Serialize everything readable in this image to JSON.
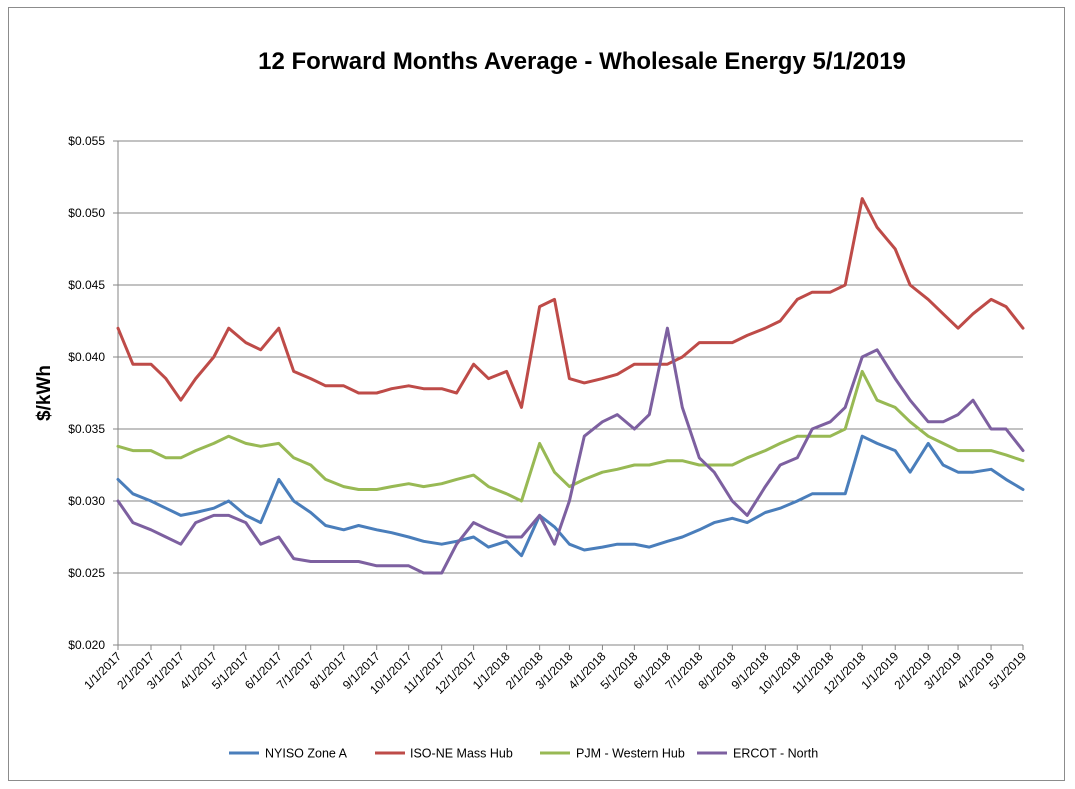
{
  "chart_data": {
    "type": "line",
    "title": "12 Forward Months Average - Wholesale Energy 5/1/2019",
    "ylabel": "$/kWh",
    "xlabel": "",
    "ylim": [
      0.02,
      0.055
    ],
    "xlim": [
      "1/1/2017",
      "5/1/2019"
    ],
    "yticks": [
      0.02,
      0.025,
      0.03,
      0.035,
      0.04,
      0.045,
      0.05,
      0.055
    ],
    "ytick_labels": [
      "$0.020",
      "$0.025",
      "$0.030",
      "$0.035",
      "$0.040",
      "$0.045",
      "$0.050",
      "$0.055"
    ],
    "xtick_labels": [
      "1/1/2017",
      "2/1/2017",
      "3/1/2017",
      "4/1/2017",
      "5/1/2017",
      "6/1/2017",
      "7/1/2017",
      "8/1/2017",
      "9/1/2017",
      "10/1/2017",
      "11/1/2017",
      "12/1/2017",
      "1/1/2018",
      "2/1/2018",
      "3/1/2018",
      "4/1/2018",
      "5/1/2018",
      "6/1/2018",
      "7/1/2018",
      "8/1/2018",
      "9/1/2018",
      "10/1/2018",
      "11/1/2018",
      "12/1/2018",
      "1/1/2019",
      "2/1/2019",
      "3/1/2019",
      "4/1/2019",
      "5/1/2019"
    ],
    "x": [
      "1/1/2017",
      "1/15/2017",
      "2/1/2017",
      "2/15/2017",
      "3/1/2017",
      "3/15/2017",
      "4/1/2017",
      "4/15/2017",
      "5/1/2017",
      "5/15/2017",
      "6/1/2017",
      "6/15/2017",
      "7/1/2017",
      "7/15/2017",
      "8/1/2017",
      "8/15/2017",
      "9/1/2017",
      "9/15/2017",
      "10/1/2017",
      "10/15/2017",
      "11/1/2017",
      "11/15/2017",
      "12/1/2017",
      "12/15/2017",
      "1/1/2018",
      "1/15/2018",
      "2/1/2018",
      "2/15/2018",
      "3/1/2018",
      "3/15/2018",
      "4/1/2018",
      "4/15/2018",
      "5/1/2018",
      "5/15/2018",
      "6/1/2018",
      "6/15/2018",
      "7/1/2018",
      "7/15/2018",
      "8/1/2018",
      "8/15/2018",
      "9/1/2018",
      "9/15/2018",
      "10/1/2018",
      "10/15/2018",
      "11/1/2018",
      "11/15/2018",
      "12/1/2018",
      "12/15/2018",
      "1/1/2019",
      "1/15/2019",
      "2/1/2019",
      "2/15/2019",
      "3/1/2019",
      "3/15/2019",
      "4/1/2019",
      "4/15/2019",
      "5/1/2019"
    ],
    "series": [
      {
        "name": "NYISO Zone A",
        "color": "#4a7ebb",
        "values": [
          0.0315,
          0.0305,
          0.03,
          0.0295,
          0.029,
          0.0292,
          0.0295,
          0.03,
          0.029,
          0.0285,
          0.0315,
          0.03,
          0.0292,
          0.0283,
          0.028,
          0.0283,
          0.028,
          0.0278,
          0.0275,
          0.0272,
          0.027,
          0.0272,
          0.0275,
          0.0268,
          0.0272,
          0.0262,
          0.029,
          0.0282,
          0.027,
          0.0266,
          0.0268,
          0.027,
          0.027,
          0.0268,
          0.0272,
          0.0275,
          0.028,
          0.0285,
          0.0288,
          0.0285,
          0.0292,
          0.0295,
          0.03,
          0.0305,
          0.0305,
          0.0305,
          0.0345,
          0.034,
          0.0335,
          0.032,
          0.034,
          0.0325,
          0.032,
          0.032,
          0.0322,
          0.0315,
          0.0308
        ]
      },
      {
        "name": "ISO-NE Mass Hub",
        "color": "#be4b48",
        "values": [
          0.042,
          0.0395,
          0.0395,
          0.0385,
          0.037,
          0.0385,
          0.04,
          0.042,
          0.041,
          0.0405,
          0.042,
          0.039,
          0.0385,
          0.038,
          0.038,
          0.0375,
          0.0375,
          0.0378,
          0.038,
          0.0378,
          0.0378,
          0.0375,
          0.0395,
          0.0385,
          0.039,
          0.0365,
          0.0435,
          0.044,
          0.0385,
          0.0382,
          0.0385,
          0.0388,
          0.0395,
          0.0395,
          0.0395,
          0.04,
          0.041,
          0.041,
          0.041,
          0.0415,
          0.042,
          0.0425,
          0.044,
          0.0445,
          0.0445,
          0.045,
          0.051,
          0.049,
          0.0475,
          0.045,
          0.044,
          0.043,
          0.042,
          0.043,
          0.044,
          0.0435,
          0.042
        ]
      },
      {
        "name": "PJM - Western Hub",
        "color": "#98b954",
        "values": [
          0.0338,
          0.0335,
          0.0335,
          0.033,
          0.033,
          0.0335,
          0.034,
          0.0345,
          0.034,
          0.0338,
          0.034,
          0.033,
          0.0325,
          0.0315,
          0.031,
          0.0308,
          0.0308,
          0.031,
          0.0312,
          0.031,
          0.0312,
          0.0315,
          0.0318,
          0.031,
          0.0305,
          0.03,
          0.034,
          0.032,
          0.031,
          0.0315,
          0.032,
          0.0322,
          0.0325,
          0.0325,
          0.0328,
          0.0328,
          0.0325,
          0.0325,
          0.0325,
          0.033,
          0.0335,
          0.034,
          0.0345,
          0.0345,
          0.0345,
          0.035,
          0.039,
          0.037,
          0.0365,
          0.0355,
          0.0345,
          0.034,
          0.0335,
          0.0335,
          0.0335,
          0.0332,
          0.0328
        ]
      },
      {
        "name": "ERCOT - North",
        "color": "#7d60a0",
        "values": [
          0.03,
          0.0285,
          0.028,
          0.0275,
          0.027,
          0.0285,
          0.029,
          0.029,
          0.0285,
          0.027,
          0.0275,
          0.026,
          0.0258,
          0.0258,
          0.0258,
          0.0258,
          0.0255,
          0.0255,
          0.0255,
          0.025,
          0.025,
          0.027,
          0.0285,
          0.028,
          0.0275,
          0.0275,
          0.029,
          0.027,
          0.03,
          0.0345,
          0.0355,
          0.036,
          0.035,
          0.036,
          0.042,
          0.0365,
          0.033,
          0.032,
          0.03,
          0.029,
          0.031,
          0.0325,
          0.033,
          0.035,
          0.0355,
          0.0365,
          0.04,
          0.0405,
          0.0385,
          0.037,
          0.0355,
          0.0355,
          0.036,
          0.037,
          0.035,
          0.035,
          0.0335
        ]
      }
    ],
    "legend_position": "bottom",
    "grid": true
  }
}
